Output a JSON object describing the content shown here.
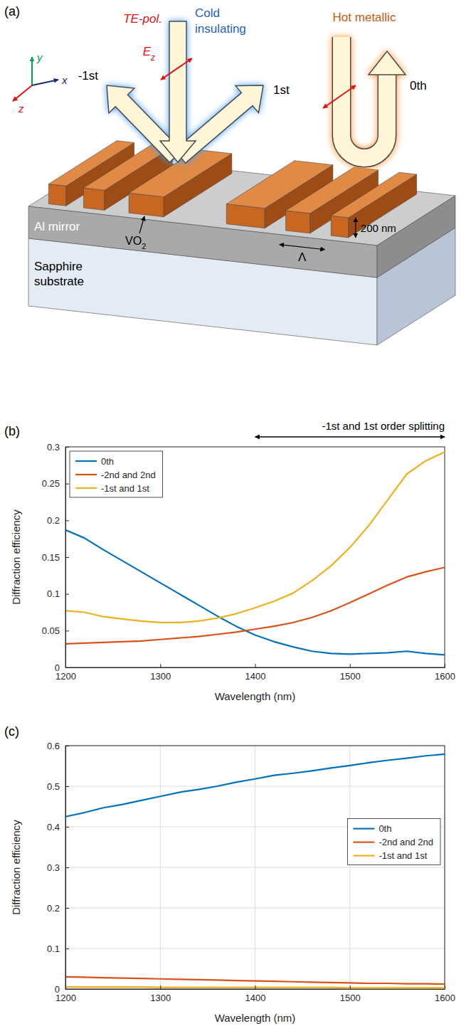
{
  "diagram": {
    "panel_label": "(a)",
    "axes": {
      "x": "x",
      "y": "y",
      "z": "z"
    },
    "polarization": "TE-pol.",
    "field": {
      "text": "E",
      "sub": "z"
    },
    "cold_state": [
      "Cold",
      "insulating"
    ],
    "hot_state": "Hot metallic",
    "orders": {
      "minus_first": "-1st",
      "first": "1st",
      "zeroth": "0th"
    },
    "mirror": "Al mirror",
    "substrate": [
      "Sapphire",
      "substrate"
    ],
    "material": {
      "text": "VO",
      "sub": "2"
    },
    "height": "200 nm",
    "period": "Λ"
  },
  "chart_data": [
    {
      "panel_label": "(b)",
      "type": "line",
      "x_label": "Wavelength (nm)",
      "y_label": "Diffraction efficiency",
      "x": [
        1200,
        1220,
        1240,
        1260,
        1280,
        1300,
        1320,
        1340,
        1360,
        1380,
        1400,
        1420,
        1440,
        1460,
        1480,
        1500,
        1520,
        1540,
        1560,
        1580,
        1600
      ],
      "series": [
        {
          "name": "0th",
          "color": "#0072BD",
          "values": [
            0.187,
            0.176,
            0.16,
            0.145,
            0.13,
            0.115,
            0.1,
            0.085,
            0.07,
            0.056,
            0.044,
            0.035,
            0.028,
            0.022,
            0.019,
            0.018,
            0.019,
            0.02,
            0.022,
            0.019,
            0.017
          ]
        },
        {
          "name": "-2nd and 2nd",
          "color": "#D95319",
          "values": [
            0.032,
            0.033,
            0.034,
            0.035,
            0.036,
            0.038,
            0.04,
            0.042,
            0.045,
            0.048,
            0.052,
            0.056,
            0.061,
            0.068,
            0.077,
            0.088,
            0.1,
            0.112,
            0.123,
            0.13,
            0.136
          ]
        },
        {
          "name": "-1st and 1st",
          "color": "#EDB120",
          "values": [
            0.077,
            0.075,
            0.069,
            0.066,
            0.063,
            0.061,
            0.061,
            0.063,
            0.067,
            0.073,
            0.081,
            0.09,
            0.101,
            0.118,
            0.138,
            0.163,
            0.193,
            0.228,
            0.263,
            0.281,
            0.293
          ]
        }
      ],
      "xlim": [
        1200,
        1600
      ],
      "xticks": [
        1200,
        1300,
        1400,
        1500,
        1600
      ],
      "ylim": [
        0,
        0.3
      ],
      "yticks": [
        0,
        0.05,
        0.1,
        0.15,
        0.2,
        0.25,
        0.3
      ],
      "grid": false,
      "legend": "upper left",
      "annotations": [
        {
          "text": "-1st and 1st order splitting",
          "x": [
            1400,
            1600
          ]
        }
      ]
    },
    {
      "panel_label": "(c)",
      "type": "line",
      "x_label": "Wavelength (nm)",
      "y_label": "Diffraction efficiency",
      "x": [
        1200,
        1220,
        1240,
        1260,
        1280,
        1300,
        1320,
        1340,
        1360,
        1380,
        1400,
        1420,
        1440,
        1460,
        1480,
        1500,
        1520,
        1540,
        1560,
        1580,
        1600
      ],
      "series": [
        {
          "name": "0th",
          "color": "#0072BD",
          "values": [
            0.425,
            0.435,
            0.447,
            0.455,
            0.465,
            0.475,
            0.485,
            0.492,
            0.5,
            0.51,
            0.518,
            0.527,
            0.532,
            0.538,
            0.545,
            0.551,
            0.558,
            0.564,
            0.569,
            0.575,
            0.579
          ]
        },
        {
          "name": "-2nd and 2nd",
          "color": "#D95319",
          "values": [
            0.03,
            0.029,
            0.028,
            0.027,
            0.026,
            0.025,
            0.024,
            0.023,
            0.022,
            0.021,
            0.02,
            0.019,
            0.018,
            0.017,
            0.016,
            0.015,
            0.014,
            0.014,
            0.013,
            0.013,
            0.012
          ]
        },
        {
          "name": "-1st and 1st",
          "color": "#EDB120",
          "values": [
            0.005,
            0.005,
            0.005,
            0.005,
            0.005,
            0.004,
            0.004,
            0.004,
            0.004,
            0.004,
            0.004,
            0.004,
            0.004,
            0.004,
            0.004,
            0.003,
            0.003,
            0.003,
            0.003,
            0.003,
            0.003
          ]
        }
      ],
      "xlim": [
        1200,
        1600
      ],
      "xticks": [
        1200,
        1300,
        1400,
        1500,
        1600
      ],
      "ylim": [
        0,
        0.6
      ],
      "yticks": [
        0,
        0.1,
        0.2,
        0.3,
        0.4,
        0.5,
        0.6
      ],
      "grid": true,
      "legend": "right"
    }
  ]
}
